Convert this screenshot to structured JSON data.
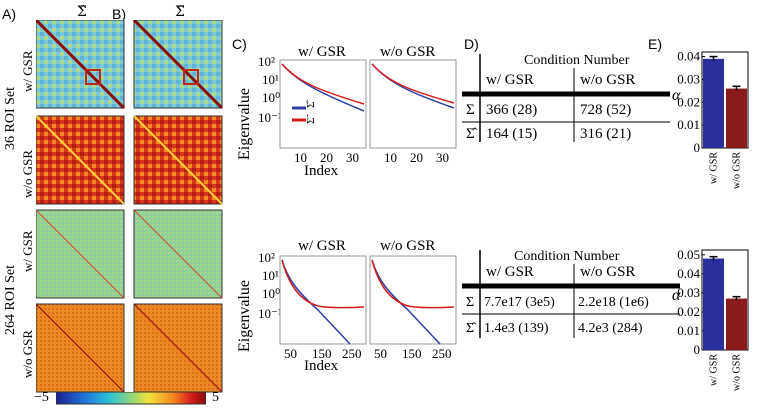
{
  "panel_labels": {
    "a": "A)",
    "b": "B)",
    "c": "C)",
    "d": "D)",
    "e": "E)"
  },
  "matrix_headers": {
    "sigma_hat": "Σ̂",
    "sigma_tilde": "Σ̃"
  },
  "row_groups": {
    "top": "36 ROI Set",
    "bottom": "264 ROI Set"
  },
  "row_labels": {
    "with_gsr": "w/ GSR",
    "without_gsr": "w/o GSR"
  },
  "colorbar": {
    "min_label": "−5",
    "max_label": "5",
    "colors": [
      "#1a1f8c",
      "#1e6fd9",
      "#29c0d8",
      "#8fd67a",
      "#f2e23a",
      "#f5871f",
      "#d81b1b",
      "#8a0b0b"
    ]
  },
  "heatmap_styles": {
    "top_with": {
      "bg": "#7ccad8",
      "accent": "#e8c54a"
    },
    "top_without": {
      "bg": "#d9341c",
      "accent": "#f5a623"
    },
    "bottom_with": {
      "bg": "#8fcf9a",
      "accent": "#e8c54a"
    },
    "bottom_without": {
      "bg": "#e87b1f",
      "accent": "#c0261a"
    }
  },
  "eigen_plots": {
    "ylabel": "Eigenvalue",
    "xlabel": "Index",
    "legend": {
      "hat": "Σ̂",
      "tilde": "Σ̃"
    },
    "top_titles": [
      "w/ GSR",
      "w/o GSR"
    ],
    "bottom_titles": [
      "w/ GSR",
      "w/o GSR"
    ],
    "top_xticks": [
      "10",
      "20",
      "30"
    ],
    "bottom_xticks": [
      "50",
      "150",
      "250"
    ],
    "yticks": [
      "10²",
      "10¹",
      "10⁰",
      "10⁻¹"
    ]
  },
  "tables": {
    "header_group": "Condition Number",
    "col_with": "w/ GSR",
    "col_without": "w/o GSR",
    "top": {
      "rows": [
        {
          "symbol": "Σ",
          "with": "366 (28)",
          "without": "728 (52)"
        },
        {
          "symbol": "Σ̂",
          "with": "164 (15)",
          "without": "316 (21)"
        }
      ]
    },
    "bottom": {
      "rows": [
        {
          "symbol": "Σ",
          "with": "7.7e17 (3e5)",
          "without": "2.2e18 (1e6)"
        },
        {
          "symbol": "Σ̂",
          "with": "1.4e3   (139)",
          "without": "4.2e3   (284)"
        }
      ]
    }
  },
  "chart_data": [
    {
      "type": "bar",
      "title": "",
      "ylabel": "α",
      "categories": [
        "w/ GSR",
        "w/o GSR"
      ],
      "values": [
        0.039,
        0.026
      ],
      "errors": [
        0.001,
        0.001
      ],
      "colors": [
        "#2b2f9e",
        "#8b1a1a"
      ],
      "ylim": [
        0,
        0.04
      ],
      "yticks": [
        "0",
        "0.01",
        "0.02",
        "0.03",
        "0.04"
      ]
    },
    {
      "type": "bar",
      "title": "",
      "ylabel": "α",
      "categories": [
        "w/ GSR",
        "w/o GSR"
      ],
      "values": [
        0.048,
        0.027
      ],
      "errors": [
        0.001,
        0.001
      ],
      "colors": [
        "#2b2f9e",
        "#8b1a1a"
      ],
      "ylim": [
        0,
        0.05
      ],
      "yticks": [
        "0",
        "0.01",
        "0.02",
        "0.03",
        "0.04",
        "0.05"
      ]
    }
  ]
}
